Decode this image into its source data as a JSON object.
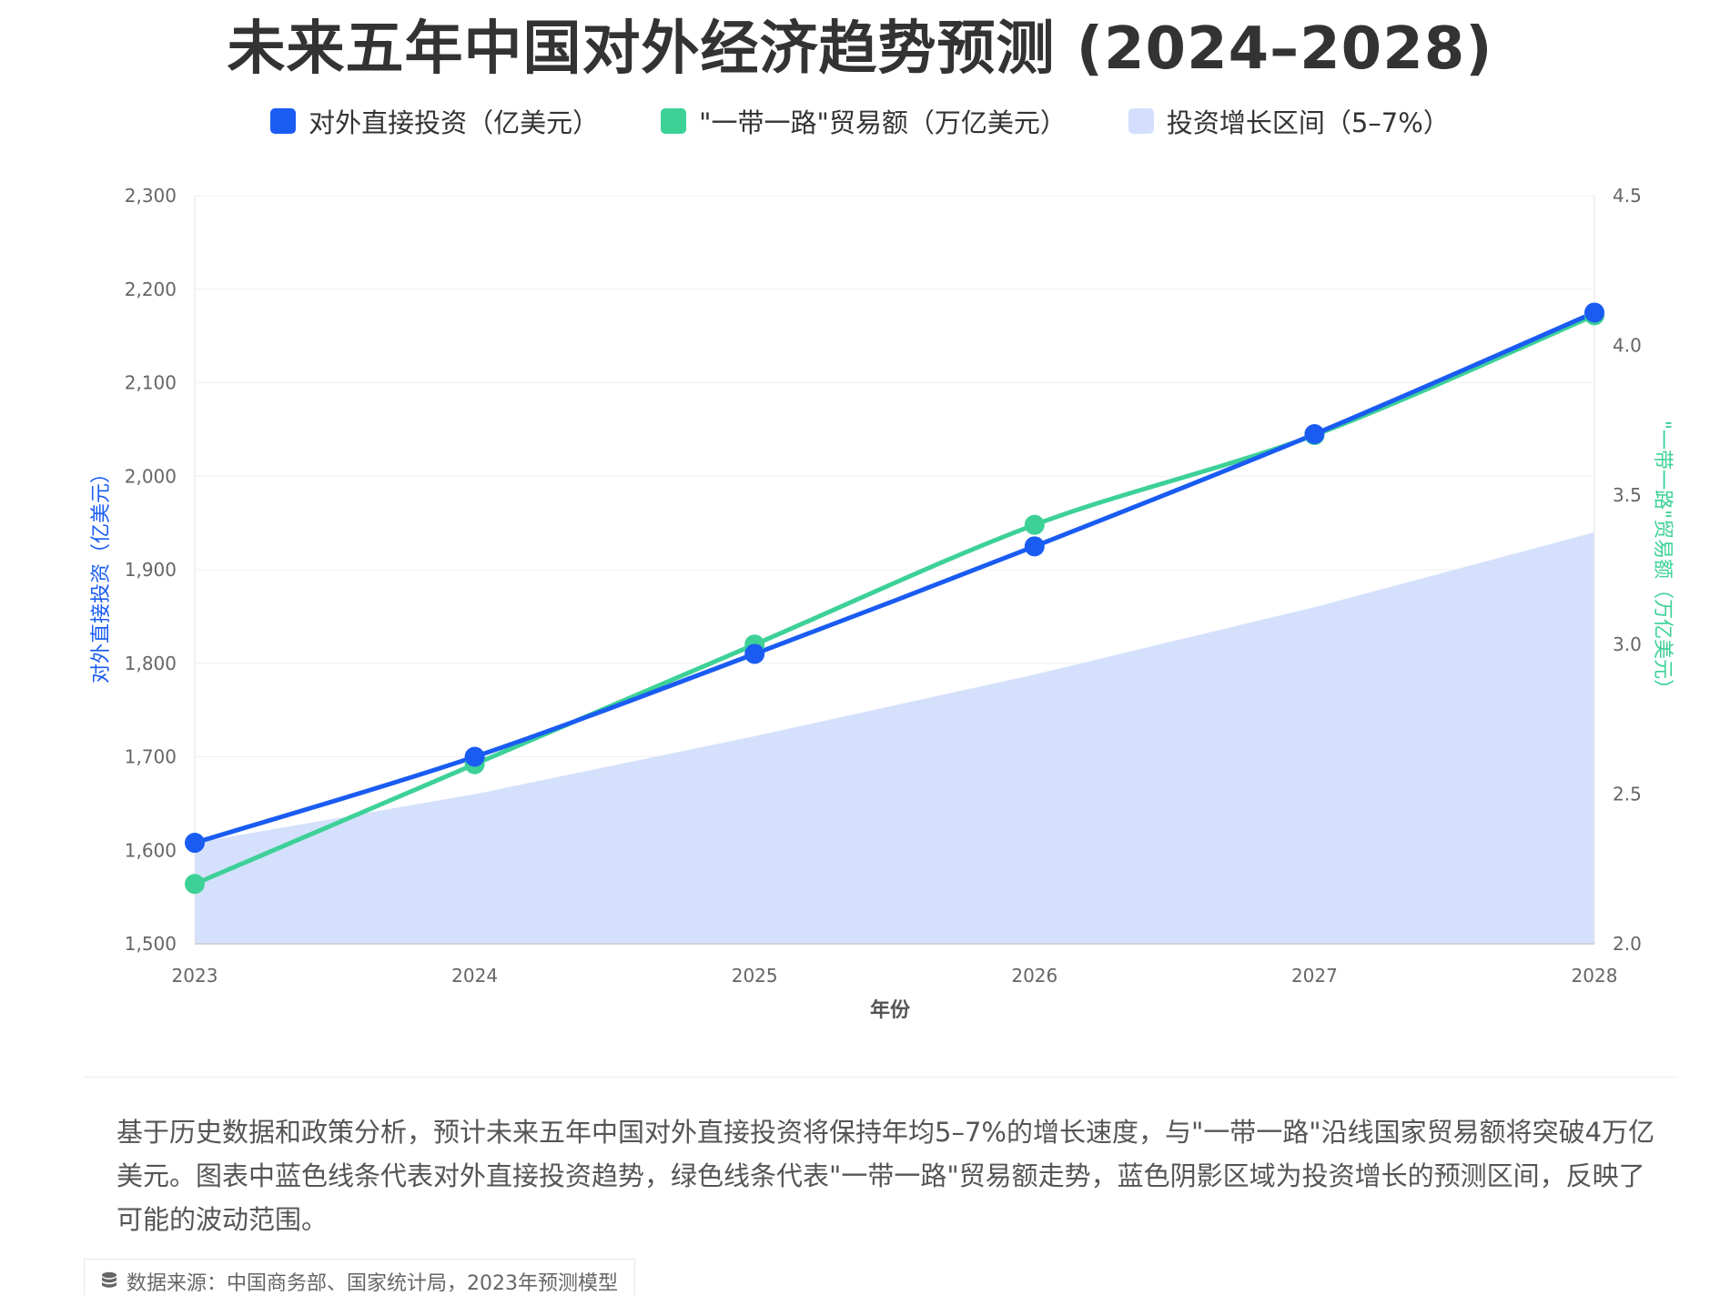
{
  "title": "未来五年中国对外经济趋势预测 (2024–2028)",
  "legend": [
    {
      "label": "对外直接投资（亿美元）",
      "color": "#1a5cf2"
    },
    {
      "label": "\"一带一路\"贸易额（万亿美元）",
      "color": "#3dd197"
    },
    {
      "label": "投资增长区间（5–7%）",
      "color": "#d3dffc"
    }
  ],
  "chart_data": {
    "type": "line",
    "title": "未来五年中国对外经济趋势预测 (2024–2028)",
    "xlabel": "年份",
    "ylabel_left": "对外直接投资（亿美元）",
    "ylabel_right": "\"一带一路\"贸易额（万亿美元）",
    "x": [
      "2023",
      "2024",
      "2025",
      "2026",
      "2027",
      "2028"
    ],
    "ylim_left": [
      1500,
      2300
    ],
    "ylim_right": [
      2.0,
      4.5
    ],
    "yticks_left": [
      "1,500",
      "1,600",
      "1,700",
      "1,800",
      "1,900",
      "2,000",
      "2,100",
      "2,200",
      "2,300"
    ],
    "yticks_right": [
      "2.0",
      "2.5",
      "3.0",
      "3.5",
      "4.0",
      "4.5"
    ],
    "grid": true,
    "legend_position": "top",
    "series": [
      {
        "name": "对外直接投资（亿美元）",
        "axis": "left",
        "color": "#1a5cf2",
        "values": [
          1608,
          1700,
          1810,
          1925,
          2045,
          2175
        ]
      },
      {
        "name": "\"一带一路\"贸易额（万亿美元）",
        "axis": "right",
        "color": "#3dd197",
        "values": [
          2.2,
          2.6,
          3.0,
          3.4,
          3.7,
          4.1
        ]
      },
      {
        "name": "投资增长区间（5–7%）",
        "axis": "left",
        "type": "area",
        "color": "#d3dffc",
        "values": [
          1608,
          1660,
          1722,
          1788,
          1860,
          1940
        ]
      }
    ]
  },
  "description": "基于历史数据和政策分析，预计未来五年中国对外直接投资将保持年均5–7%的增长速度，与\"一带一路\"沿线国家贸易额将突破4万亿美元。图表中蓝色线条代表对外直接投资趋势，绿色线条代表\"一带一路\"贸易额走势，蓝色阴影区域为投资增长的预测区间，反映了可能的波动范围。",
  "source": "数据来源：中国商务部、国家统计局，2023年预测模型",
  "source_icon": "database-icon"
}
